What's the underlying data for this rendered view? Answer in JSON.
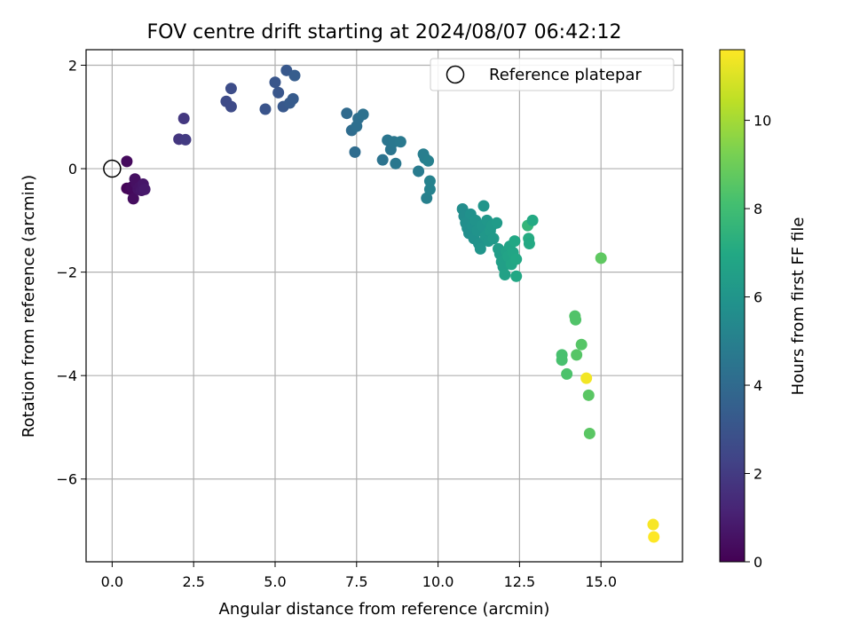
{
  "chart_data": {
    "type": "scatter",
    "title": "FOV centre drift starting at 2024/08/07 06:42:12",
    "xlabel": "Angular distance from reference (arcmin)",
    "ylabel": "Rotation from reference (arcmin)",
    "xlim": [
      -0.8,
      17.5
    ],
    "ylim": [
      -7.6,
      2.3
    ],
    "xticks": [
      0.0,
      2.5,
      5.0,
      7.5,
      10.0,
      12.5,
      15.0
    ],
    "xtick_labels": [
      "0.0",
      "2.5",
      "5.0",
      "7.5",
      "10.0",
      "12.5",
      "15.0"
    ],
    "yticks": [
      2,
      0,
      -2,
      -4,
      -6
    ],
    "ytick_labels": [
      "2",
      "0",
      "−2",
      "−4",
      "−6"
    ],
    "grid": true,
    "legend": {
      "placement": "upper right",
      "label": "Reference platepar"
    },
    "reference_point": {
      "x": 0.0,
      "y": 0.0
    },
    "colorbar": {
      "label": "Hours from first FF file",
      "colormap": "viridis",
      "range": [
        0,
        11.6
      ],
      "ticks": [
        0,
        2,
        4,
        6,
        8,
        10
      ],
      "tick_labels": [
        "0",
        "2",
        "4",
        "6",
        "8",
        "10"
      ]
    },
    "points": [
      {
        "x": 0.45,
        "y": 0.14,
        "h": 0.3
      },
      {
        "x": 0.45,
        "y": -0.38,
        "h": 0.1
      },
      {
        "x": 0.55,
        "y": -0.4,
        "h": 0.2
      },
      {
        "x": 0.6,
        "y": -0.36,
        "h": 0.3
      },
      {
        "x": 0.65,
        "y": -0.58,
        "h": 0.4
      },
      {
        "x": 0.7,
        "y": -0.2,
        "h": 0.5
      },
      {
        "x": 0.75,
        "y": -0.3,
        "h": 0.5
      },
      {
        "x": 0.8,
        "y": -0.4,
        "h": 0.6
      },
      {
        "x": 0.85,
        "y": -0.35,
        "h": 0.6
      },
      {
        "x": 0.9,
        "y": -0.42,
        "h": 0.7
      },
      {
        "x": 0.95,
        "y": -0.3,
        "h": 0.7
      },
      {
        "x": 1.0,
        "y": -0.4,
        "h": 0.8
      },
      {
        "x": 2.05,
        "y": 0.57,
        "h": 1.8
      },
      {
        "x": 2.2,
        "y": 0.97,
        "h": 1.9
      },
      {
        "x": 2.25,
        "y": 0.56,
        "h": 2.0
      },
      {
        "x": 3.5,
        "y": 1.3,
        "h": 2.6
      },
      {
        "x": 3.65,
        "y": 1.2,
        "h": 2.6
      },
      {
        "x": 3.65,
        "y": 1.55,
        "h": 2.7
      },
      {
        "x": 4.7,
        "y": 1.15,
        "h": 3.0
      },
      {
        "x": 5.0,
        "y": 1.67,
        "h": 3.1
      },
      {
        "x": 5.1,
        "y": 1.47,
        "h": 3.1
      },
      {
        "x": 5.25,
        "y": 1.2,
        "h": 3.2
      },
      {
        "x": 5.35,
        "y": 1.9,
        "h": 3.2
      },
      {
        "x": 5.45,
        "y": 1.27,
        "h": 3.3
      },
      {
        "x": 5.55,
        "y": 1.35,
        "h": 3.3
      },
      {
        "x": 5.6,
        "y": 1.8,
        "h": 3.4
      },
      {
        "x": 7.2,
        "y": 1.07,
        "h": 4.0
      },
      {
        "x": 7.35,
        "y": 0.74,
        "h": 4.1
      },
      {
        "x": 7.45,
        "y": 0.32,
        "h": 4.1
      },
      {
        "x": 7.5,
        "y": 0.82,
        "h": 4.2
      },
      {
        "x": 7.55,
        "y": 0.97,
        "h": 4.2
      },
      {
        "x": 7.7,
        "y": 1.05,
        "h": 4.3
      },
      {
        "x": 8.3,
        "y": 0.17,
        "h": 4.4
      },
      {
        "x": 8.45,
        "y": 0.55,
        "h": 4.5
      },
      {
        "x": 8.55,
        "y": 0.37,
        "h": 4.5
      },
      {
        "x": 8.65,
        "y": 0.52,
        "h": 4.6
      },
      {
        "x": 8.7,
        "y": 0.1,
        "h": 4.6
      },
      {
        "x": 8.85,
        "y": 0.52,
        "h": 4.7
      },
      {
        "x": 9.4,
        "y": -0.05,
        "h": 4.8
      },
      {
        "x": 9.55,
        "y": 0.28,
        "h": 4.9
      },
      {
        "x": 9.6,
        "y": 0.2,
        "h": 4.9
      },
      {
        "x": 9.7,
        "y": 0.15,
        "h": 5.0
      },
      {
        "x": 9.65,
        "y": -0.57,
        "h": 5.0
      },
      {
        "x": 9.75,
        "y": -0.24,
        "h": 5.1
      },
      {
        "x": 9.75,
        "y": -0.4,
        "h": 5.1
      },
      {
        "x": 10.75,
        "y": -0.78,
        "h": 5.6
      },
      {
        "x": 10.8,
        "y": -0.92,
        "h": 5.6
      },
      {
        "x": 10.85,
        "y": -1.05,
        "h": 5.7
      },
      {
        "x": 10.9,
        "y": -1.15,
        "h": 5.7
      },
      {
        "x": 10.95,
        "y": -1.25,
        "h": 5.7
      },
      {
        "x": 11.0,
        "y": -0.88,
        "h": 5.8
      },
      {
        "x": 11.05,
        "y": -1.1,
        "h": 5.8
      },
      {
        "x": 11.1,
        "y": -1.35,
        "h": 5.8
      },
      {
        "x": 11.15,
        "y": -1.0,
        "h": 5.9
      },
      {
        "x": 11.2,
        "y": -1.2,
        "h": 5.9
      },
      {
        "x": 11.25,
        "y": -1.45,
        "h": 5.9
      },
      {
        "x": 11.3,
        "y": -1.55,
        "h": 6.0
      },
      {
        "x": 11.35,
        "y": -1.1,
        "h": 6.0
      },
      {
        "x": 11.4,
        "y": -0.72,
        "h": 6.0
      },
      {
        "x": 11.45,
        "y": -1.3,
        "h": 6.1
      },
      {
        "x": 11.5,
        "y": -1.0,
        "h": 6.1
      },
      {
        "x": 11.55,
        "y": -1.4,
        "h": 6.1
      },
      {
        "x": 11.6,
        "y": -1.2,
        "h": 6.2
      },
      {
        "x": 11.65,
        "y": -1.1,
        "h": 6.2
      },
      {
        "x": 11.7,
        "y": -1.35,
        "h": 6.2
      },
      {
        "x": 11.8,
        "y": -1.05,
        "h": 6.3
      },
      {
        "x": 11.85,
        "y": -1.55,
        "h": 6.4
      },
      {
        "x": 11.9,
        "y": -1.65,
        "h": 6.4
      },
      {
        "x": 11.95,
        "y": -1.8,
        "h": 6.5
      },
      {
        "x": 12.0,
        "y": -1.9,
        "h": 6.5
      },
      {
        "x": 12.05,
        "y": -2.05,
        "h": 6.6
      },
      {
        "x": 12.1,
        "y": -1.6,
        "h": 6.6
      },
      {
        "x": 12.15,
        "y": -1.7,
        "h": 6.7
      },
      {
        "x": 12.2,
        "y": -1.5,
        "h": 6.7
      },
      {
        "x": 12.25,
        "y": -1.85,
        "h": 6.8
      },
      {
        "x": 12.3,
        "y": -1.62,
        "h": 6.8
      },
      {
        "x": 12.35,
        "y": -1.4,
        "h": 6.9
      },
      {
        "x": 12.4,
        "y": -2.08,
        "h": 6.9
      },
      {
        "x": 12.4,
        "y": -1.75,
        "h": 6.9
      },
      {
        "x": 12.75,
        "y": -1.1,
        "h": 7.6
      },
      {
        "x": 12.78,
        "y": -1.35,
        "h": 7.1
      },
      {
        "x": 12.8,
        "y": -1.45,
        "h": 7.0
      },
      {
        "x": 12.9,
        "y": -1.0,
        "h": 7.0
      },
      {
        "x": 13.8,
        "y": -3.6,
        "h": 8.2
      },
      {
        "x": 13.8,
        "y": -3.7,
        "h": 8.2
      },
      {
        "x": 13.95,
        "y": -3.97,
        "h": 8.3
      },
      {
        "x": 14.2,
        "y": -2.85,
        "h": 8.4
      },
      {
        "x": 14.22,
        "y": -2.92,
        "h": 8.4
      },
      {
        "x": 14.25,
        "y": -3.6,
        "h": 8.5
      },
      {
        "x": 14.4,
        "y": -3.4,
        "h": 8.5
      },
      {
        "x": 14.55,
        "y": -4.05,
        "h": 11.4
      },
      {
        "x": 14.62,
        "y": -4.38,
        "h": 8.6
      },
      {
        "x": 14.65,
        "y": -5.12,
        "h": 8.6
      },
      {
        "x": 15.0,
        "y": -1.73,
        "h": 8.7
      },
      {
        "x": 16.6,
        "y": -6.88,
        "h": 11.5
      },
      {
        "x": 16.62,
        "y": -7.12,
        "h": 11.6
      }
    ]
  }
}
